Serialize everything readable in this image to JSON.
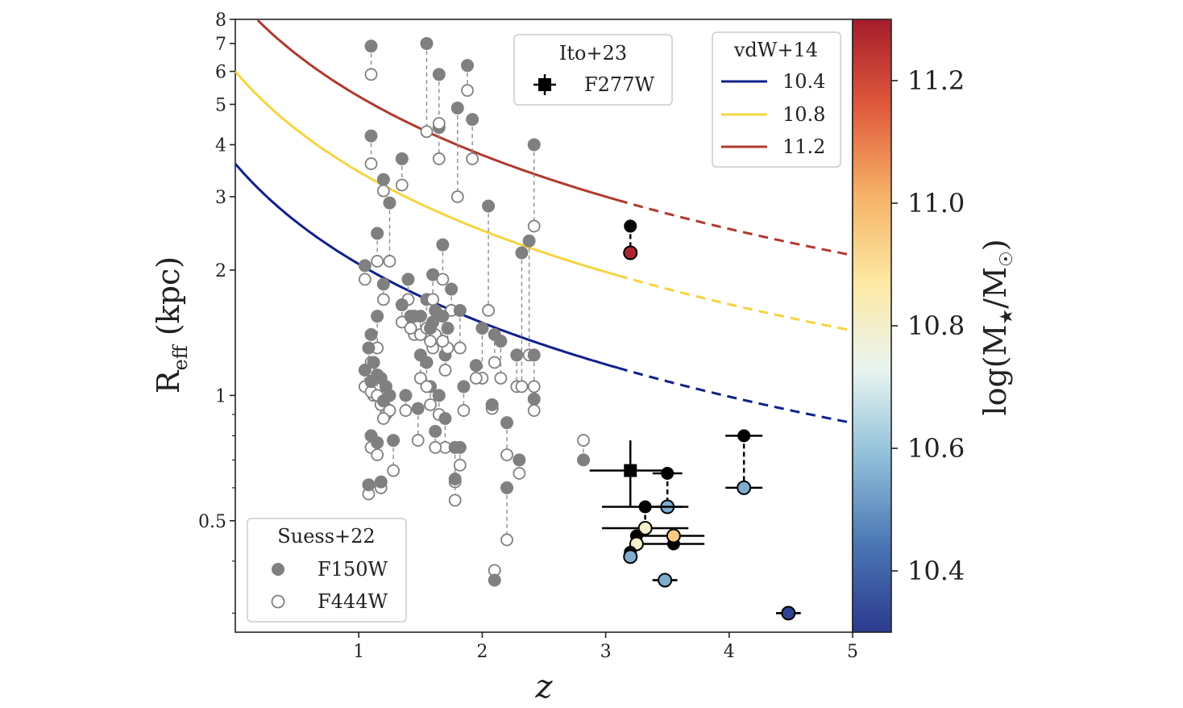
{
  "colors": {
    "suess": "#808080",
    "black": "#000000",
    "vdw_104": "#10208c",
    "vdw_108": "#f5d442",
    "vdw_112": "#b03a2e",
    "cmap": [
      "#2c3a8f",
      "#4a76b4",
      "#8fbfd9",
      "#e8f4f0",
      "#fde9a3",
      "#f6b166",
      "#e05a3c",
      "#a51d2b"
    ]
  },
  "chart_data": {
    "type": "scatter",
    "xlabel": "z",
    "ylabel_main": "R",
    "ylabel_sub": "eff",
    "ylabel_unit": " (kpc)",
    "xlim": [
      0,
      5
    ],
    "ylim": [
      0.27,
      8
    ],
    "yscale": "log",
    "x_ticks": [
      1,
      2,
      3,
      4,
      5
    ],
    "x_tick_labels": [
      "1",
      "2",
      "3",
      "4",
      "5"
    ],
    "y_ticks": [
      0.5,
      1,
      2,
      3,
      4,
      5,
      6,
      7,
      8
    ],
    "y_tick_labels": [
      "0.5",
      "1",
      "2",
      "3",
      "4",
      "5",
      "6",
      "7",
      "8"
    ],
    "colorbar": {
      "label_main": "log(M",
      "label_sub": "★",
      "label_mid": "/M",
      "label_sun": "☉",
      "label_end": ")",
      "range": [
        10.3,
        11.3
      ],
      "ticks": [
        10.4,
        10.6,
        10.8,
        11.0,
        11.2
      ],
      "tick_labels": [
        "10.4",
        "10.6",
        "10.8",
        "11.0",
        "11.2"
      ]
    },
    "legend_ito": {
      "title": "Ito+23",
      "entry": "F277W"
    },
    "legend_vdw": {
      "title": "vdW+14",
      "entries": [
        "10.4",
        "10.8",
        "11.2"
      ]
    },
    "legend_suess": {
      "title": "Suess+22",
      "entries": [
        "F150W",
        "F444W"
      ]
    },
    "vdw_curves": [
      {
        "name": "10.4",
        "a": 3.6,
        "b": -0.8,
        "solid_until": 3.1,
        "color_key": "vdw_104"
      },
      {
        "name": "10.8",
        "a": 6.0,
        "b": -0.8,
        "solid_until": 3.1,
        "color_key": "vdw_108"
      },
      {
        "name": "11.2",
        "a": 9.1,
        "b": -0.8,
        "solid_until": 3.1,
        "color_key": "vdw_112"
      }
    ],
    "suess_pairs": [
      [
        1.1,
        6.9,
        5.9
      ],
      [
        1.1,
        4.2,
        3.6
      ],
      [
        1.15,
        2.45,
        2.1
      ],
      [
        1.2,
        3.3,
        3.1
      ],
      [
        1.25,
        2.9,
        2.1
      ],
      [
        1.05,
        2.05,
        1.9
      ],
      [
        1.2,
        1.85,
        1.7
      ],
      [
        1.15,
        1.55,
        1.3
      ],
      [
        1.1,
        1.4,
        1.2
      ],
      [
        1.08,
        1.3,
        1.15
      ],
      [
        1.05,
        1.15,
        1.05
      ],
      [
        1.12,
        1.2,
        1.0
      ],
      [
        1.18,
        1.1,
        0.95
      ],
      [
        1.22,
        1.05,
        0.9
      ],
      [
        1.25,
        1.0,
        0.92
      ],
      [
        1.1,
        1.08,
        1.02
      ],
      [
        1.15,
        1.12,
        1.0
      ],
      [
        1.2,
        0.97,
        0.88
      ],
      [
        1.1,
        0.8,
        0.75
      ],
      [
        1.15,
        0.77,
        0.72
      ],
      [
        1.08,
        0.61,
        0.58
      ],
      [
        1.18,
        0.62,
        0.6
      ],
      [
        1.28,
        0.78,
        0.66
      ],
      [
        1.35,
        3.7,
        3.2
      ],
      [
        1.4,
        1.9,
        1.7
      ],
      [
        1.45,
        1.55,
        1.4
      ],
      [
        1.5,
        1.55,
        1.4
      ],
      [
        1.48,
        0.93,
        0.78
      ],
      [
        1.55,
        7.0,
        4.3
      ],
      [
        1.55,
        1.7,
        1.45
      ],
      [
        1.6,
        1.95,
        1.7
      ],
      [
        1.6,
        1.5,
        1.3
      ],
      [
        1.65,
        4.4,
        3.7
      ],
      [
        1.65,
        5.9,
        4.5
      ],
      [
        1.68,
        2.3,
        1.9
      ],
      [
        1.62,
        1.6,
        1.4
      ],
      [
        1.7,
        1.25,
        1.15
      ],
      [
        1.58,
        1.05,
        0.95
      ],
      [
        1.65,
        1.0,
        0.9
      ],
      [
        1.7,
        0.88,
        0.75
      ],
      [
        1.62,
        0.82,
        0.75
      ],
      [
        1.75,
        1.8,
        1.6
      ],
      [
        1.8,
        4.9,
        3.0
      ],
      [
        1.88,
        6.2,
        5.4
      ],
      [
        1.92,
        4.6,
        3.7
      ],
      [
        1.85,
        1.05,
        0.92
      ],
      [
        1.78,
        0.75,
        0.62
      ],
      [
        1.82,
        0.75,
        0.68
      ],
      [
        1.78,
        0.63,
        0.56
      ],
      [
        1.82,
        1.6,
        1.3
      ],
      [
        2.05,
        2.85,
        1.6
      ],
      [
        2.0,
        1.45,
        1.1
      ],
      [
        2.1,
        1.4,
        1.2
      ],
      [
        2.08,
        0.95,
        0.93
      ],
      [
        2.15,
        1.35,
        1.1
      ],
      [
        2.2,
        0.86,
        0.72
      ],
      [
        2.2,
        0.6,
        0.45
      ],
      [
        2.28,
        1.25,
        1.05
      ],
      [
        2.3,
        0.7,
        0.65
      ],
      [
        2.32,
        2.2,
        1.05
      ],
      [
        2.38,
        2.35,
        1.25
      ],
      [
        2.42,
        4.0,
        2.55
      ],
      [
        2.42,
        1.25,
        1.05
      ],
      [
        2.42,
        0.98,
        0.92
      ],
      [
        2.1,
        0.36,
        0.38
      ],
      [
        2.82,
        0.7,
        0.78
      ],
      [
        1.35,
        1.65,
        1.5
      ],
      [
        1.42,
        1.55,
        1.45
      ],
      [
        1.58,
        1.45,
        1.35
      ],
      [
        1.72,
        1.45,
        1.3
      ],
      [
        1.5,
        1.25,
        1.1
      ],
      [
        1.55,
        1.2,
        1.05
      ],
      [
        1.68,
        1.55,
        1.35
      ],
      [
        1.38,
        1.0,
        0.92
      ],
      [
        1.95,
        1.18,
        1.1
      ]
    ],
    "ito_points": [
      {
        "z": 3.2,
        "r_black": 2.55,
        "r_color": 2.2,
        "mass": 11.28
      },
      {
        "z": 4.12,
        "r_black": 0.8,
        "r_color": 0.6,
        "mass": 10.55,
        "xerr": 0.15,
        "yerr_black": 0.05
      },
      {
        "z": 3.5,
        "r_black": 0.65,
        "r_color": 0.54,
        "mass": 10.55,
        "xerr": 0.12
      },
      {
        "z": 3.32,
        "r_black": 0.54,
        "r_color": 0.48,
        "mass": 10.8,
        "xerr": 0.35
      },
      {
        "z": 3.25,
        "r_black": 0.46,
        "r_color": 0.44,
        "mass": 10.8
      },
      {
        "z": 3.2,
        "r_black": 0.42,
        "r_color": 0.41,
        "mass": 10.55
      },
      {
        "z": 3.55,
        "r_black": 0.44,
        "r_color": 0.46,
        "mass": 10.95,
        "xerr": 0.25
      },
      {
        "z": 3.48,
        "r_black": 0.36,
        "r_color": 0.36,
        "mass": 10.55,
        "xerr": 0.1
      },
      {
        "z": 4.48,
        "r_black": 0.3,
        "r_color": 0.3,
        "mass": 10.32,
        "xerr": 0.1
      }
    ],
    "ito_stack": {
      "z": 3.2,
      "r": 0.66,
      "xerr": 0.33,
      "yerr": 0.12
    }
  }
}
